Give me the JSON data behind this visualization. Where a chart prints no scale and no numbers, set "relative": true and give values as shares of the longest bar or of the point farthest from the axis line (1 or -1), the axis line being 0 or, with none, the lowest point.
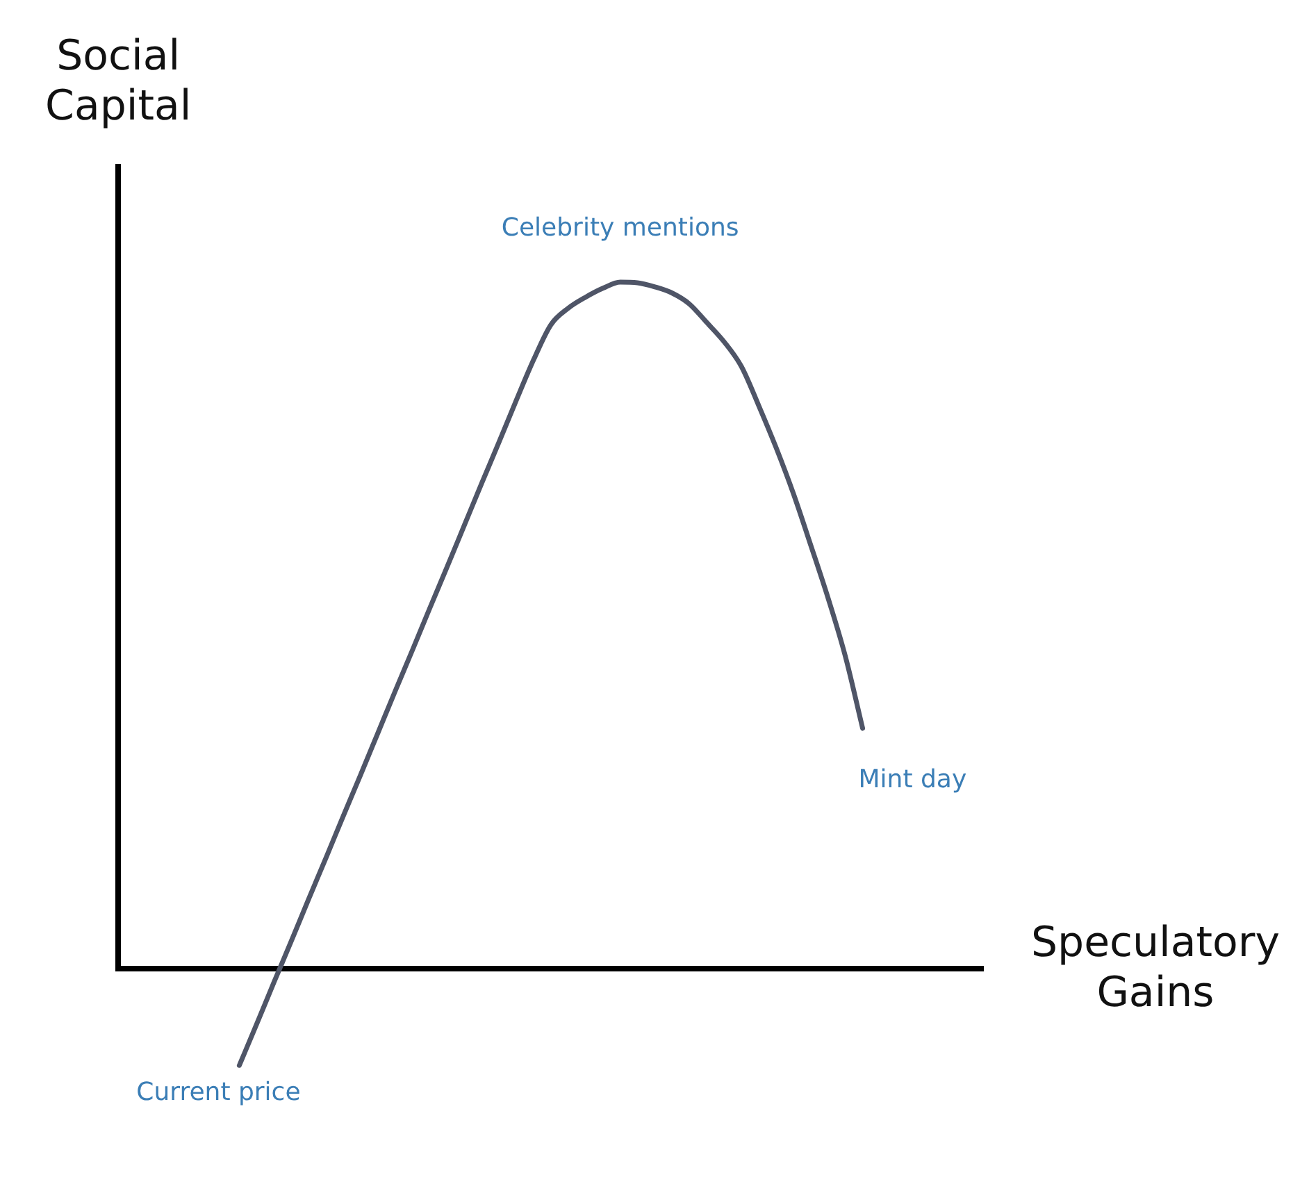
{
  "chart_data": {
    "type": "line",
    "relative": true,
    "xlabel": "Speculatory Gains",
    "ylabel": "Social Capital",
    "categories": [
      null,
      null,
      null,
      null,
      null,
      null,
      null,
      null,
      null,
      null,
      null,
      null,
      null,
      null,
      null,
      null,
      null,
      null,
      null,
      null,
      null,
      null,
      null,
      null,
      null,
      null,
      null,
      null,
      null,
      null,
      null,
      null,
      null,
      null,
      null,
      null,
      null,
      null,
      null,
      null,
      null,
      null,
      null,
      null,
      null,
      null,
      null,
      null,
      null,
      null,
      null
    ],
    "values": [
      null,
      null,
      null,
      null,
      null,
      null,
      null,
      -0.141,
      -0.081,
      -0.02,
      0.04,
      0.101,
      0.161,
      0.222,
      0.282,
      0.343,
      0.404,
      0.464,
      0.525,
      0.585,
      0.646,
      0.707,
      0.767,
      0.828,
      0.887,
      0.938,
      0.962,
      0.978,
      0.991,
      1,
      0.999,
      0.993,
      0.984,
      0.968,
      0.941,
      0.913,
      0.877,
      0.82,
      0.759,
      0.692,
      0.617,
      0.54,
      0.455,
      0.35,
      null,
      null,
      null,
      null,
      null,
      null,
      null
    ],
    "color": "#4f5567",
    "annotations": [
      {
        "text": "Celebrity mentions",
        "y": 1
      },
      "Mint day",
      "Current price"
    ]
  }
}
